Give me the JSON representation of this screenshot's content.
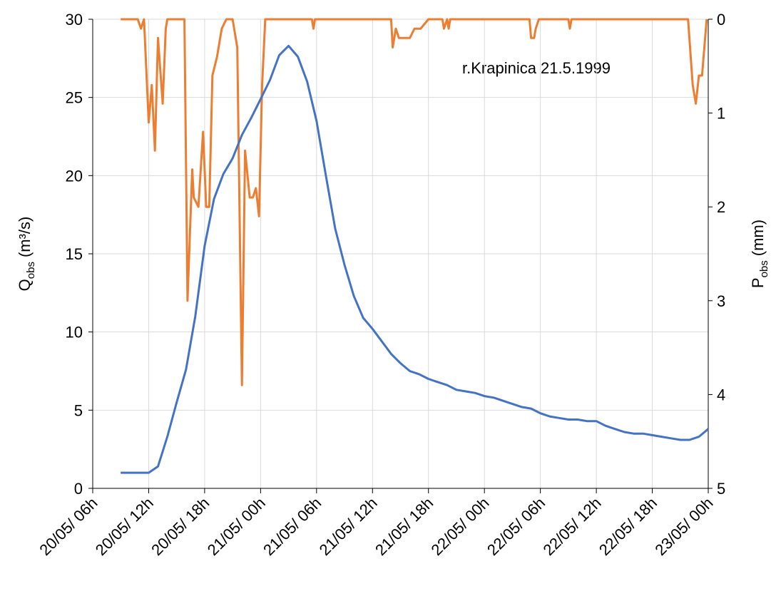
{
  "chart_data": {
    "type": "line",
    "annotation": "r.Krapinica 21.5.1999",
    "ylabel": {
      "text": "Q",
      "sub": "obs",
      "unit": "(m³/s)"
    },
    "y2label": {
      "text": "P",
      "sub": "obs",
      "unit": "(mm)"
    },
    "xlim": [
      "20/05 06:00",
      "23/05 00:00"
    ],
    "xticks": [
      {
        "value": "20/05 06:00",
        "label": "20/05/ 06h"
      },
      {
        "value": "20/05 12:00",
        "label": "20/05/ 12h"
      },
      {
        "value": "20/05 18:00",
        "label": "20/05/ 18h"
      },
      {
        "value": "21/05 00:00",
        "label": "21/05/ 00h"
      },
      {
        "value": "21/05 06:00",
        "label": "21/05/ 06h"
      },
      {
        "value": "21/05 12:00",
        "label": "21/05/ 12h"
      },
      {
        "value": "21/05 18:00",
        "label": "21/05/ 18h"
      },
      {
        "value": "22/05 00:00",
        "label": "22/05/ 00h"
      },
      {
        "value": "22/05 06:00",
        "label": "22/05/ 06h"
      },
      {
        "value": "22/05 12:00",
        "label": "22/05/ 12h"
      },
      {
        "value": "22/05 18:00",
        "label": "22/05/ 18h"
      },
      {
        "value": "23/05 00:00",
        "label": "23/05/ 00h"
      }
    ],
    "ylim": [
      0,
      30
    ],
    "yticks": [
      0,
      5,
      10,
      15,
      20,
      25,
      30
    ],
    "y2lim": [
      0,
      5
    ],
    "y2ticks": [
      0,
      1,
      2,
      3,
      4,
      5
    ],
    "y2_reversed": true,
    "grid": true,
    "series": [
      {
        "color": "#4472c4",
        "x": [
          "20/05 09:00",
          "20/05 10:00",
          "20/05 11:00",
          "20/05 12:00",
          "20/05 13:00",
          "20/05 14:00",
          "20/05 15:00",
          "20/05 16:00",
          "20/05 17:00",
          "20/05 18:00",
          "20/05 19:00",
          "20/05 20:00",
          "20/05 21:00",
          "20/05 22:00",
          "20/05 23:00",
          "21/05 00:00",
          "21/05 01:00",
          "21/05 02:00",
          "21/05 03:00",
          "21/05 04:00",
          "21/05 05:00",
          "21/05 06:00",
          "21/05 07:00",
          "21/05 08:00",
          "21/05 09:00",
          "21/05 10:00",
          "21/05 11:00",
          "21/05 12:00",
          "21/05 13:00",
          "21/05 14:00",
          "21/05 15:00",
          "21/05 16:00",
          "21/05 17:00",
          "21/05 18:00",
          "21/05 19:00",
          "21/05 20:00",
          "21/05 21:00",
          "21/05 22:00",
          "21/05 23:00",
          "22/05 00:00",
          "22/05 01:00",
          "22/05 02:00",
          "22/05 03:00",
          "22/05 04:00",
          "22/05 05:00",
          "22/05 06:00",
          "22/05 07:00",
          "22/05 08:00",
          "22/05 09:00",
          "22/05 10:00",
          "22/05 11:00",
          "22/05 12:00",
          "22/05 13:00",
          "22/05 14:00",
          "22/05 15:00",
          "22/05 16:00",
          "22/05 17:00",
          "22/05 18:00",
          "22/05 19:00",
          "22/05 20:00",
          "22/05 21:00",
          "22/05 22:00",
          "22/05 23:00",
          "23/05 00:00"
        ],
        "values": [
          1.0,
          1.0,
          1.0,
          1.0,
          1.4,
          3.3,
          5.5,
          7.6,
          11,
          15.5,
          18.5,
          20.1,
          21.1,
          22.6,
          23.7,
          24.9,
          26.1,
          27.7,
          28.3,
          27.6,
          26,
          23.5,
          20,
          16.6,
          14.3,
          12.3,
          10.9,
          10.2,
          9.4,
          8.6,
          8.0,
          7.5,
          7.3,
          7.0,
          6.8,
          6.6,
          6.3,
          6.2,
          6.1,
          5.9,
          5.8,
          5.6,
          5.4,
          5.2,
          5.1,
          4.8,
          4.6,
          4.5,
          4.4,
          4.4,
          4.3,
          4.3,
          4.0,
          3.8,
          3.6,
          3.5,
          3.5,
          3.4,
          3.3,
          3.2,
          3.1,
          3.1,
          3.3,
          3.8
        ]
      },
      {
        "color": "#ed7d31",
        "axis": "y2",
        "x": [
          "20/05 09:00",
          "20/05 10:50",
          "20/05 11:10",
          "20/05 11:30",
          "20/05 12:00",
          "20/05 12:20",
          "20/05 12:40",
          "20/05 13:00",
          "20/05 13:30",
          "20/05 13:50",
          "20/05 14:00",
          "20/05 15:50",
          "20/05 16:10",
          "20/05 16:40",
          "20/05 16:50",
          "20/05 17:20",
          "20/05 17:50",
          "20/05 18:10",
          "20/05 18:30",
          "20/05 18:50",
          "20/05 19:20",
          "20/05 19:50",
          "20/05 20:20",
          "20/05 21:00",
          "20/05 21:30",
          "20/05 22:00",
          "20/05 22:20",
          "20/05 22:50",
          "20/05 23:10",
          "20/05 23:30",
          "20/05 23:50",
          "21/05 00:10",
          "21/05 00:30",
          "21/05 05:30",
          "21/05 05:40",
          "21/05 05:50",
          "21/05 14:00",
          "21/05 14:10",
          "21/05 14:30",
          "21/05 14:50",
          "21/05 15:30",
          "21/05 16:00",
          "21/05 16:30",
          "21/05 17:10",
          "21/05 18:00",
          "21/05 19:30",
          "21/05 19:40",
          "21/05 20:00",
          "21/05 20:10",
          "21/05 20:20",
          "22/05 04:50",
          "22/05 05:00",
          "22/05 05:20",
          "22/05 05:30",
          "22/05 05:50",
          "22/05 09:00",
          "22/05 09:10",
          "22/05 09:20",
          "22/05 21:50",
          "22/05 22:20",
          "22/05 22:40",
          "22/05 23:00",
          "22/05 23:20",
          "22/05 23:50"
        ],
        "values": [
          0,
          0,
          0.1,
          0,
          1.1,
          0.7,
          1.4,
          0.2,
          0.9,
          0.1,
          0,
          0,
          3.0,
          1.6,
          1.9,
          2.0,
          1.2,
          2.0,
          2.0,
          0.6,
          0.4,
          0.1,
          0,
          0,
          0.3,
          3.9,
          1.4,
          1.9,
          1.9,
          1.8,
          2.1,
          0.7,
          0,
          0,
          0.1,
          0,
          0,
          0.3,
          0.1,
          0.2,
          0.2,
          0.2,
          0.1,
          0.1,
          0,
          0,
          0.1,
          0,
          0.1,
          0,
          0,
          0.2,
          0.2,
          0.1,
          0,
          0,
          0.1,
          0,
          0,
          0.7,
          0.9,
          0.6,
          0.6,
          0
        ]
      }
    ]
  }
}
